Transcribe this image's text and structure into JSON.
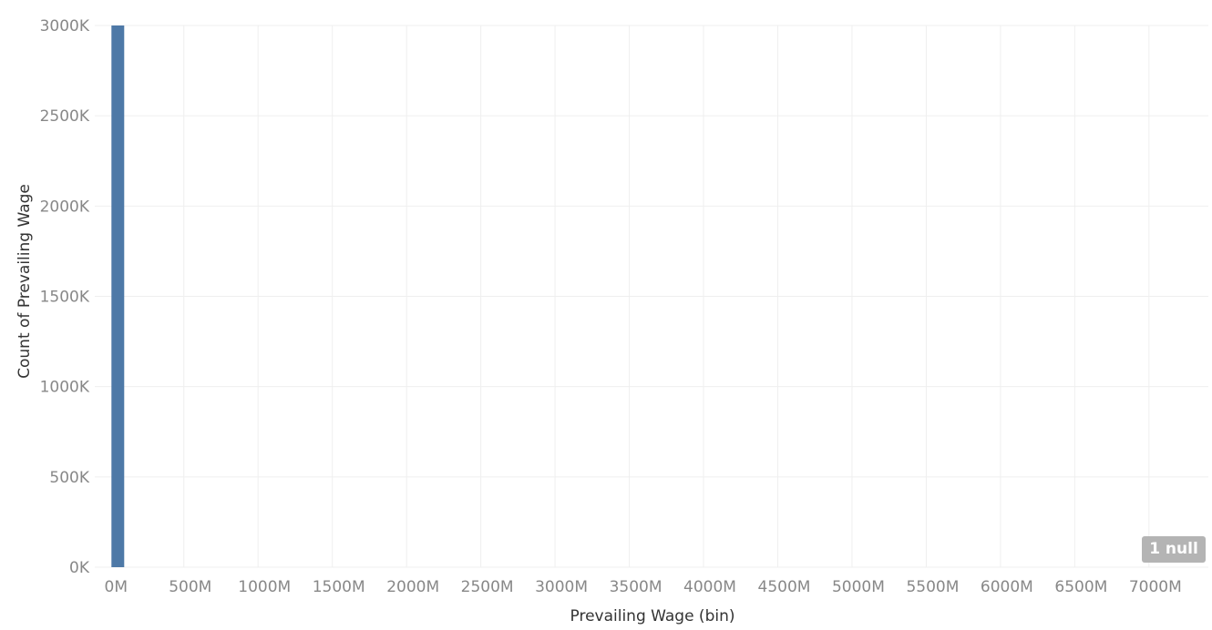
{
  "chart_data": {
    "type": "bar",
    "xlabel": "Prevailing Wage (bin)",
    "ylabel": "Count of Prevailing Wage",
    "x_ticks": [
      "0M",
      "500M",
      "1000M",
      "1500M",
      "2000M",
      "2500M",
      "3000M",
      "3500M",
      "4000M",
      "4500M",
      "5000M",
      "5500M",
      "6000M",
      "6500M",
      "7000M"
    ],
    "x_tick_values": [
      0,
      500,
      1000,
      1500,
      2000,
      2500,
      3000,
      3500,
      4000,
      4500,
      5000,
      5500,
      6000,
      6500,
      7000
    ],
    "xlim": [
      -100,
      7400
    ],
    "y_ticks": [
      "0K",
      "500K",
      "1000K",
      "1500K",
      "2000K",
      "2500K",
      "3000K"
    ],
    "y_tick_values": [
      0,
      500,
      1000,
      1500,
      2000,
      2500,
      3000
    ],
    "ylim": [
      0,
      3000
    ],
    "bins": [
      {
        "start": 0,
        "end": 0.08,
        "count": 3000
      }
    ],
    "bar_color": "#4e79a7",
    "gridlines": true,
    "null_indicator": "1 null"
  }
}
